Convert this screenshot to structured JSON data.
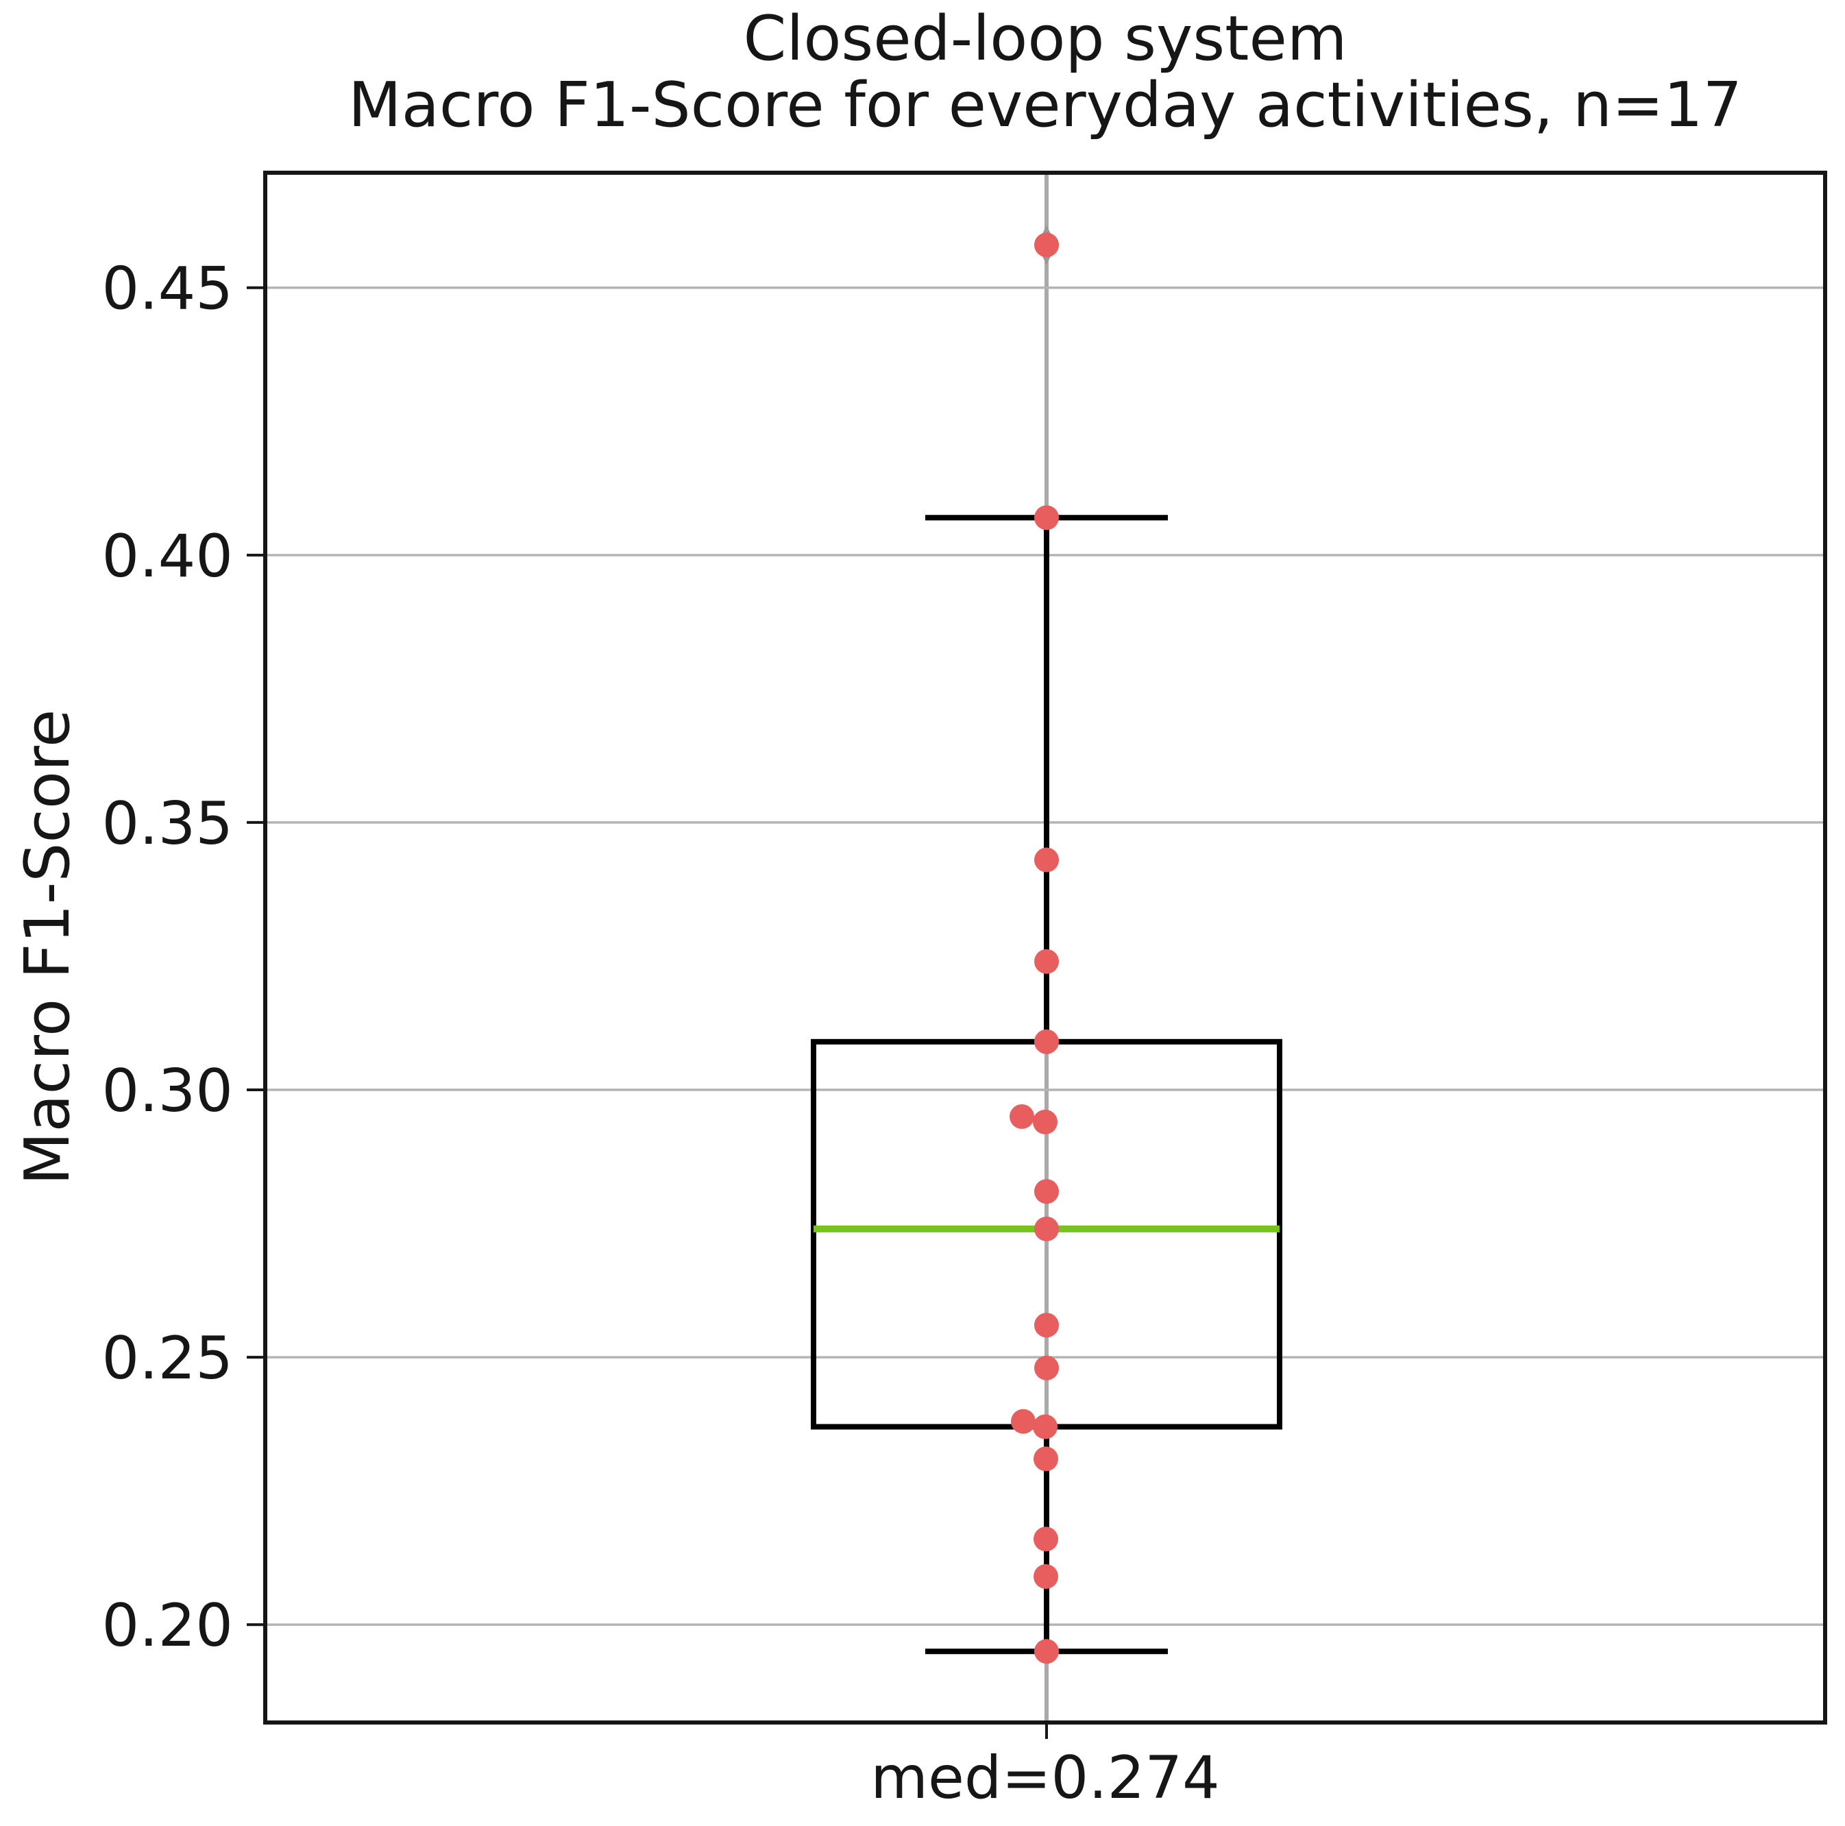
{
  "figure": {
    "title_line1": "Closed-loop system",
    "title_line2": "Macro F1-Score for everyday activities, n=17",
    "y_axis_label": "Macro F1-Score",
    "x_tick_label": "med=0.274"
  },
  "chart_data": {
    "type": "box",
    "title": "Closed-loop system",
    "subtitle": "Macro F1-Score for everyday activities, n=17",
    "xlabel": "",
    "ylabel": "Macro F1-Score",
    "x_tick_label": "med=0.274",
    "n": 17,
    "grid": true,
    "ylim": [
      0.1817,
      0.4715
    ],
    "yticks": [
      0.45,
      0.4,
      0.35,
      0.3,
      0.25,
      0.2
    ],
    "ytick_labels": [
      "0.45",
      "0.40",
      "0.35",
      "0.30",
      "0.25",
      "0.20"
    ],
    "box_stats": {
      "median": 0.274,
      "q1": 0.237,
      "q3": 0.309,
      "whisker_low": 0.195,
      "whisker_high": 0.407,
      "outliers": [
        0.458
      ]
    },
    "points": [
      {
        "value": 0.458,
        "dx": 0
      },
      {
        "value": 0.407,
        "dx": 0
      },
      {
        "value": 0.343,
        "dx": 0
      },
      {
        "value": 0.324,
        "dx": 0
      },
      {
        "value": 0.309,
        "dx": 0
      },
      {
        "value": 0.295,
        "dx": -36
      },
      {
        "value": 0.294,
        "dx": -2
      },
      {
        "value": 0.281,
        "dx": 0
      },
      {
        "value": 0.274,
        "dx": 0
      },
      {
        "value": 0.256,
        "dx": 0
      },
      {
        "value": 0.248,
        "dx": 0
      },
      {
        "value": 0.238,
        "dx": -34
      },
      {
        "value": 0.237,
        "dx": -2
      },
      {
        "value": 0.231,
        "dx": -1
      },
      {
        "value": 0.216,
        "dx": -1
      },
      {
        "value": 0.209,
        "dx": -1
      },
      {
        "value": 0.195,
        "dx": 0
      }
    ]
  },
  "colors": {
    "point": "#e85d5d",
    "median_line": "#74c41c",
    "box_line": "#000000",
    "spine": "#161616",
    "grid_line": "#b4b4b4",
    "center_line": "#a9a9a9",
    "flier": "#999999",
    "background": "#ffffff",
    "text": "#161616"
  }
}
